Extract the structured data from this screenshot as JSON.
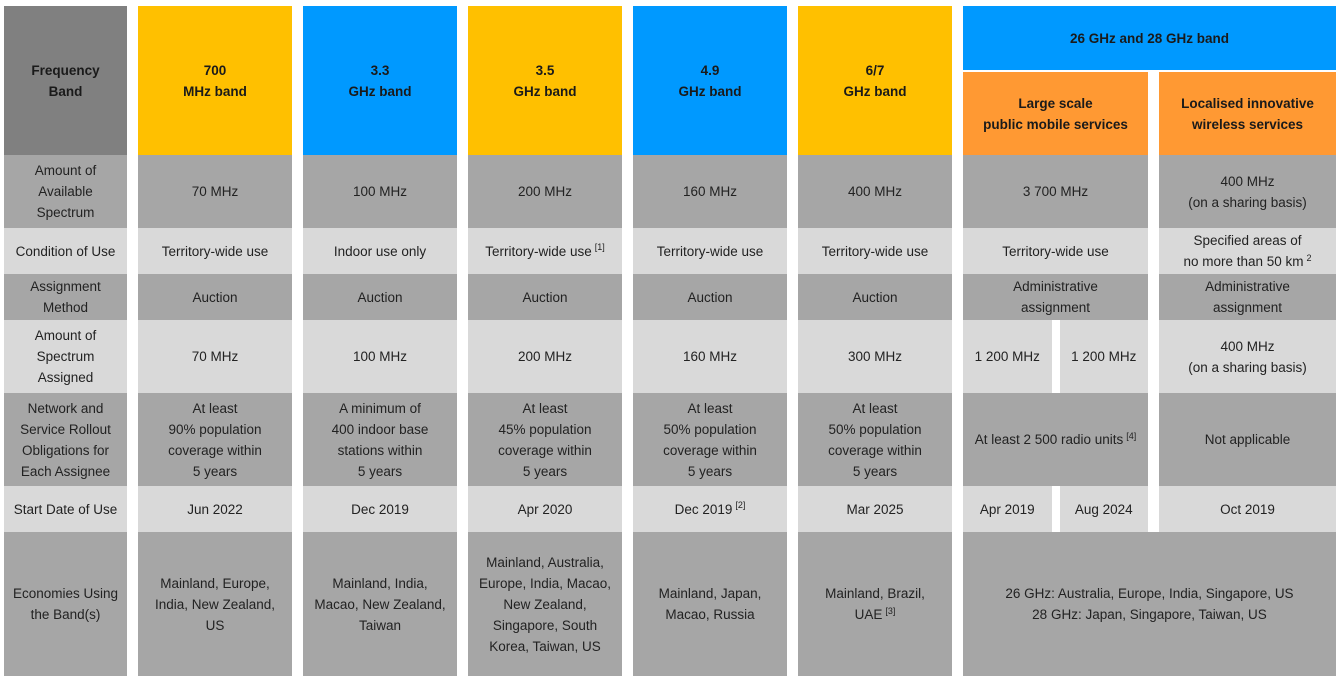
{
  "header": {
    "row_label": "Frequency\nBand",
    "bands": [
      "700\nMHz band",
      "3.3\nGHz band",
      "3.5\nGHz band",
      "4.9\nGHz band",
      "6/7\nGHz band"
    ],
    "group": "26 GHz and 28 GHz band",
    "subbands": [
      "Large scale\npublic mobile services",
      "Localised innovative\nwireless services"
    ]
  },
  "rows": [
    {
      "label": "Amount of\nAvailable\nSpectrum",
      "cells": [
        {
          "text": "70 MHz"
        },
        {
          "text": "100 MHz"
        },
        {
          "text": "200 MHz"
        },
        {
          "text": "160 MHz"
        },
        {
          "text": "400 MHz"
        }
      ],
      "group_cells": [
        {
          "text": "3 700 MHz"
        },
        {
          "text": "400 MHz\n(on a sharing basis)"
        }
      ]
    },
    {
      "label": "Condition of Use",
      "cells": [
        {
          "text": "Territory-wide use"
        },
        {
          "text": "Indoor use only"
        },
        {
          "text": "Territory-wide use",
          "sup": "[1]"
        },
        {
          "text": "Territory-wide use"
        },
        {
          "text": "Territory-wide use"
        }
      ],
      "group_cells": [
        {
          "text": "Territory-wide use"
        },
        {
          "text": "Specified areas of\nno more than 50 km",
          "sup": "2"
        }
      ]
    },
    {
      "label": "Assignment\nMethod",
      "cells": [
        {
          "text": "Auction"
        },
        {
          "text": "Auction"
        },
        {
          "text": "Auction"
        },
        {
          "text": "Auction"
        },
        {
          "text": "Auction"
        }
      ],
      "group_cells": [
        {
          "text": "Administrative\nassignment"
        },
        {
          "text": "Administrative\nassignment"
        }
      ]
    },
    {
      "label": "Amount of\nSpectrum\nAssigned",
      "cells": [
        {
          "text": "70 MHz"
        },
        {
          "text": "100 MHz"
        },
        {
          "text": "200 MHz"
        },
        {
          "text": "160 MHz"
        },
        {
          "text": "300 MHz"
        }
      ],
      "group_cells": [
        {
          "split": [
            {
              "text": "1 200 MHz"
            },
            {
              "text": "1 200 MHz"
            }
          ]
        },
        {
          "text": "400 MHz\n(on a sharing basis)"
        }
      ]
    },
    {
      "label": "Network and\nService Rollout\nObligations for\nEach Assignee",
      "cells": [
        {
          "text": "At least\n90% population\ncoverage within\n5 years"
        },
        {
          "text": "A minimum of\n400 indoor base\nstations within\n5 years"
        },
        {
          "text": "At least\n45% population\ncoverage within\n5 years"
        },
        {
          "text": "At least\n50% population\ncoverage within\n5 years"
        },
        {
          "text": "At least\n50% population\ncoverage within\n5 years"
        }
      ],
      "group_cells": [
        {
          "text": "At least 2 500 radio units",
          "sup": "[4]"
        },
        {
          "text": "Not applicable"
        }
      ]
    },
    {
      "label": "Start Date of Use",
      "cells": [
        {
          "text": "Jun 2022"
        },
        {
          "text": "Dec 2019"
        },
        {
          "text": "Apr 2020"
        },
        {
          "text": "Dec 2019",
          "sup": "[2]"
        },
        {
          "text": "Mar 2025"
        }
      ],
      "group_cells": [
        {
          "split": [
            {
              "text": "Apr 2019"
            },
            {
              "text": "Aug 2024"
            }
          ]
        },
        {
          "text": "Oct 2019"
        }
      ]
    },
    {
      "label": "Economies Using\nthe Band(s)",
      "cells": [
        {
          "text": "Mainland, Europe,\nIndia, New Zealand,\nUS"
        },
        {
          "text": "Mainland, India,\nMacao, New Zealand,\nTaiwan"
        },
        {
          "text": "Mainland, Australia,\nEurope,  India, Macao,\nNew Zealand,\nSingapore, South\nKorea, Taiwan, US"
        },
        {
          "text": "Mainland, Japan,\nMacao, Russia"
        },
        {
          "text": "Mainland, Brazil,\nUAE",
          "sup": "[3]"
        }
      ],
      "group_cells": [
        {
          "text": "26 GHz: Australia, Europe, India, Singapore, US\n28 GHz: Japan, Singapore, Taiwan, US"
        }
      ]
    }
  ]
}
